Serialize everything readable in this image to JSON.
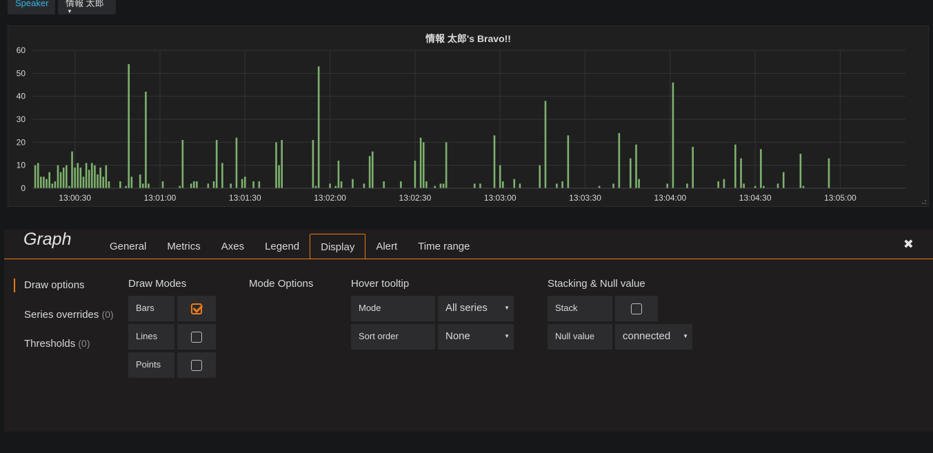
{
  "variables": {
    "label": "Speaker",
    "value": "情報 太郎"
  },
  "panel": {
    "title": "情報 太郎's Bravo!!"
  },
  "chart_data": {
    "type": "bar",
    "title": "情報 太郎's Bravo!!",
    "xlabel": "",
    "ylabel": "",
    "ylim": [
      0,
      60
    ],
    "yticks": [
      "0",
      "10",
      "20",
      "30",
      "40",
      "50",
      "60"
    ],
    "xticks": [
      "13:00:30",
      "13:01:00",
      "13:01:30",
      "13:02:00",
      "13:02:30",
      "13:03:00",
      "13:03:30",
      "13:04:00",
      "13:04:30",
      "13:05:00"
    ],
    "x_start_seconds": 15,
    "x_end_seconds": 323,
    "grid": true,
    "bar_color": "#7eb26d",
    "points": [
      [
        16,
        10
      ],
      [
        17,
        11
      ],
      [
        18,
        5
      ],
      [
        19,
        5
      ],
      [
        20,
        4
      ],
      [
        21,
        7
      ],
      [
        22,
        2
      ],
      [
        23,
        3
      ],
      [
        24,
        10
      ],
      [
        25,
        7
      ],
      [
        26,
        9
      ],
      [
        27,
        10
      ],
      [
        28,
        1
      ],
      [
        29,
        16
      ],
      [
        30,
        9
      ],
      [
        31,
        11
      ],
      [
        32,
        9
      ],
      [
        33,
        5
      ],
      [
        34,
        11
      ],
      [
        35,
        8
      ],
      [
        36,
        11
      ],
      [
        37,
        10
      ],
      [
        38,
        6
      ],
      [
        39,
        9
      ],
      [
        40,
        5
      ],
      [
        41,
        10
      ],
      [
        42,
        3
      ],
      [
        46,
        3
      ],
      [
        48,
        1
      ],
      [
        49,
        54
      ],
      [
        50,
        5
      ],
      [
        53,
        6
      ],
      [
        54,
        2
      ],
      [
        55,
        42
      ],
      [
        56,
        2
      ],
      [
        61,
        3
      ],
      [
        67,
        1
      ],
      [
        68,
        21
      ],
      [
        71,
        2
      ],
      [
        72,
        3
      ],
      [
        73,
        3
      ],
      [
        77,
        2
      ],
      [
        79,
        3
      ],
      [
        80,
        21
      ],
      [
        82,
        11
      ],
      [
        85,
        2
      ],
      [
        87,
        22
      ],
      [
        89,
        4
      ],
      [
        90,
        5
      ],
      [
        93,
        3
      ],
      [
        95,
        3
      ],
      [
        101,
        20
      ],
      [
        102,
        10
      ],
      [
        103,
        21
      ],
      [
        114,
        21
      ],
      [
        115,
        1
      ],
      [
        116,
        53
      ],
      [
        120,
        2
      ],
      [
        122,
        1
      ],
      [
        123,
        12
      ],
      [
        124,
        3
      ],
      [
        128,
        4
      ],
      [
        132,
        2
      ],
      [
        134,
        14
      ],
      [
        135,
        16
      ],
      [
        139,
        3
      ],
      [
        145,
        3
      ],
      [
        150,
        12
      ],
      [
        152,
        22
      ],
      [
        153,
        20
      ],
      [
        154,
        3
      ],
      [
        157,
        1
      ],
      [
        159,
        2
      ],
      [
        160,
        2
      ],
      [
        161,
        20
      ],
      [
        171,
        2
      ],
      [
        173,
        2
      ],
      [
        178,
        23
      ],
      [
        180,
        10
      ],
      [
        181,
        3
      ],
      [
        185,
        4
      ],
      [
        187,
        2
      ],
      [
        194,
        10
      ],
      [
        196,
        38
      ],
      [
        200,
        2
      ],
      [
        202,
        3
      ],
      [
        204,
        23
      ],
      [
        215,
        1
      ],
      [
        220,
        2
      ],
      [
        222,
        24
      ],
      [
        226,
        13
      ],
      [
        228,
        19
      ],
      [
        229,
        4
      ],
      [
        239,
        2
      ],
      [
        241,
        46
      ],
      [
        246,
        2
      ],
      [
        248,
        18
      ],
      [
        257,
        3
      ],
      [
        259,
        4
      ],
      [
        263,
        19
      ],
      [
        265,
        13
      ],
      [
        266,
        2
      ],
      [
        270,
        1
      ],
      [
        272,
        17
      ],
      [
        273,
        1
      ],
      [
        278,
        2
      ],
      [
        280,
        7
      ],
      [
        286,
        15
      ],
      [
        287,
        1
      ],
      [
        296,
        13
      ]
    ]
  },
  "editor": {
    "title": "Graph",
    "tabs": [
      "General",
      "Metrics",
      "Axes",
      "Legend",
      "Display",
      "Alert",
      "Time range"
    ],
    "active_tab": "Display",
    "close_icon": "close-icon",
    "side_nav": {
      "draw_options": "Draw options",
      "series_overrides": "Series overrides",
      "series_overrides_count": "(0)",
      "thresholds": "Thresholds",
      "thresholds_count": "(0)"
    },
    "draw_modes": {
      "title": "Draw Modes",
      "bars": "Bars",
      "bars_checked": true,
      "lines": "Lines",
      "lines_checked": false,
      "points": "Points",
      "points_checked": false
    },
    "mode_options": {
      "title": "Mode Options"
    },
    "hover_tooltip": {
      "title": "Hover tooltip",
      "mode_label": "Mode",
      "mode_value": "All series",
      "sort_label": "Sort order",
      "sort_value": "None"
    },
    "stacking": {
      "title": "Stacking & Null value",
      "stack_label": "Stack",
      "stack_checked": false,
      "null_label": "Null value",
      "null_value": "connected"
    }
  },
  "colors": {
    "accent": "#eb7b18",
    "link": "#33b5e5",
    "series": "#7eb26d"
  }
}
